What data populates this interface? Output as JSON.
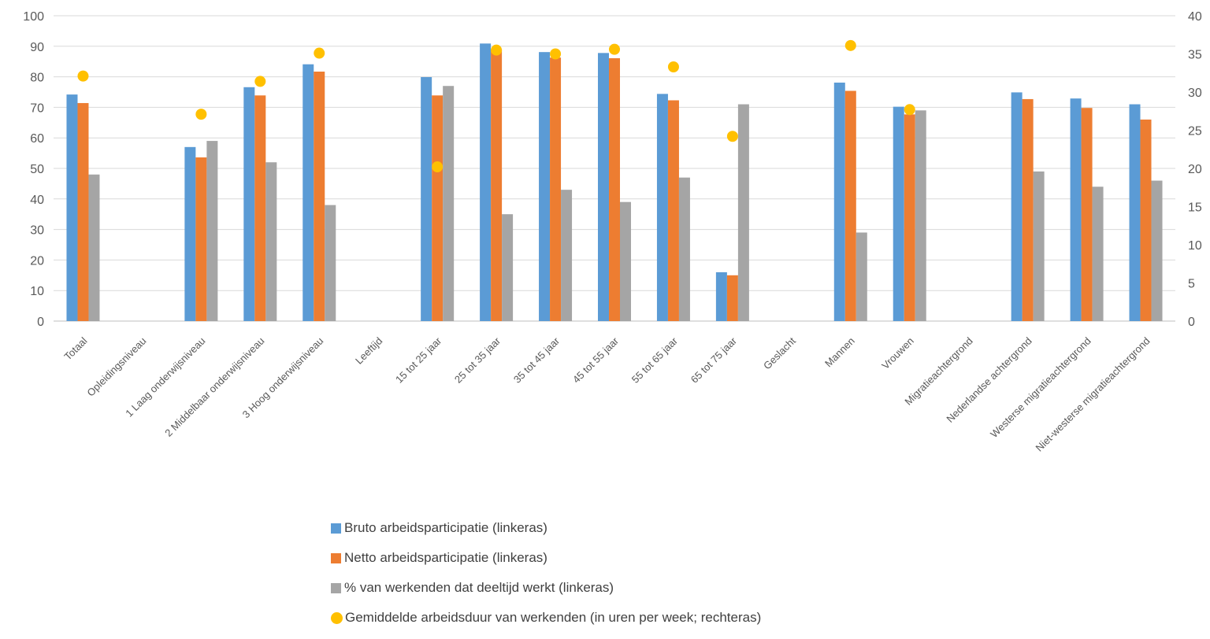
{
  "chart_data": {
    "type": "bar",
    "categories": [
      "Totaal",
      "Opleidingsniveau",
      "1 Laag onderwijsniveau",
      "2 Middelbaar onderwijsniveau",
      "3 Hoog onderwijsniveau",
      "Leeftijd",
      "15 tot 25 jaar",
      "25 tot 35 jaar",
      "35 tot 45 jaar",
      "45 tot 55 jaar",
      "55 tot 65 jaar",
      "65 tot 75 jaar",
      "Geslacht",
      "Mannen",
      "Vrouwen",
      "Migratieachtergrond",
      "Nederlandse achtergrond",
      "Westerse migratieachtergrond",
      "Niet-westerse migratieachtergrond"
    ],
    "series": [
      {
        "name": "Bruto arbeidsparticipatie (linkeras)",
        "type": "bar",
        "axis": "left",
        "color": "#5B9BD5",
        "values": [
          74.2,
          null,
          57,
          76.6,
          84.1,
          null,
          79.9,
          90.9,
          88.1,
          87.8,
          74.4,
          16,
          null,
          78.1,
          70.2,
          null,
          74.9,
          72.9,
          71
        ]
      },
      {
        "name": "Netto arbeidsparticipatie (linkeras)",
        "type": "bar",
        "axis": "left",
        "color": "#ED7D31",
        "values": [
          71.4,
          null,
          53.6,
          73.9,
          81.7,
          null,
          73.9,
          88.9,
          86.3,
          86.1,
          72.3,
          15,
          null,
          75.4,
          67.7,
          null,
          72.7,
          69.8,
          66
        ]
      },
      {
        "name": "% van werkenden dat deeltijd werkt (linkeras)",
        "type": "bar",
        "axis": "left",
        "color": "#A5A5A5",
        "values": [
          48,
          null,
          59,
          52,
          38,
          null,
          77,
          35,
          43,
          39,
          47,
          71,
          null,
          29,
          69,
          null,
          49,
          44,
          46
        ]
      },
      {
        "name": "Gemiddelde arbeidsduur van werkenden (in uren per week; rechteras)",
        "type": "scatter",
        "axis": "right",
        "color": "#FFC000",
        "values": [
          32.1,
          null,
          27.1,
          31.4,
          35.1,
          null,
          20.2,
          35.5,
          35,
          35.6,
          33.3,
          24.2,
          null,
          36.1,
          27.7,
          null,
          null,
          null,
          null
        ]
      }
    ],
    "left_axis": {
      "min": 0,
      "max": 100,
      "step": 10,
      "ticks": [
        "0",
        "10",
        "20",
        "30",
        "40",
        "50",
        "60",
        "70",
        "80",
        "90",
        "100"
      ]
    },
    "right_axis": {
      "min": 0,
      "max": 40,
      "step": 5,
      "ticks": [
        "0",
        "5",
        "10",
        "15",
        "20",
        "25",
        "30",
        "35",
        "40"
      ]
    },
    "grid": true,
    "legend_position": "bottom"
  }
}
